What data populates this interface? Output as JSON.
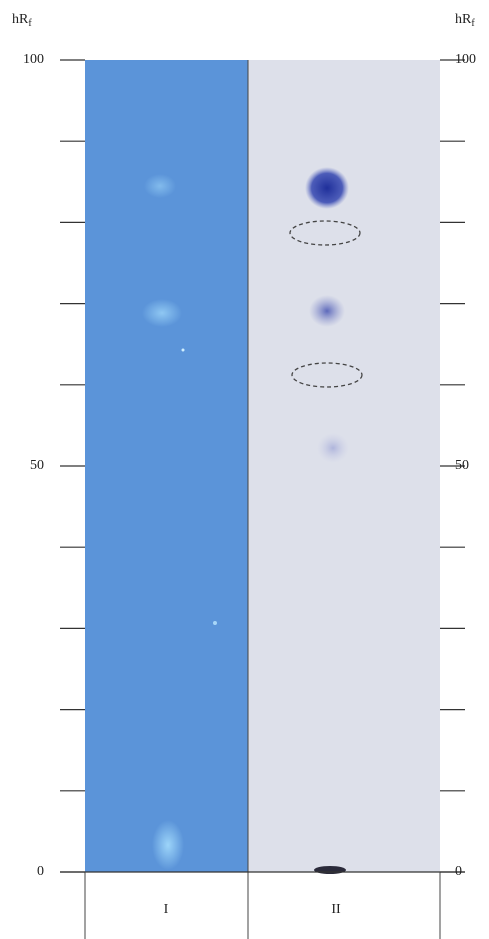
{
  "axis_label": {
    "main": "hR",
    "sub": "f"
  },
  "ylim": [
    0,
    100
  ],
  "yticks": [
    0,
    50,
    100
  ],
  "minor_ticks": [
    10,
    20,
    30,
    40,
    60,
    70,
    80,
    90
  ],
  "lanes": [
    "I",
    "II"
  ]
}
